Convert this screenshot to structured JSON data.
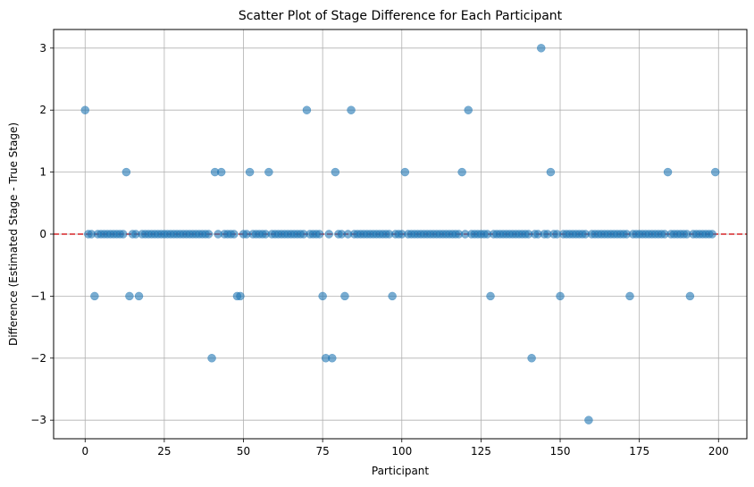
{
  "chart_data": {
    "type": "scatter",
    "title": "Scatter Plot of Stage Difference for Each Participant",
    "xlabel": "Participant",
    "ylabel": "Difference (Estimated Stage - True Stage)",
    "xlim": [
      -9.95,
      208.95
    ],
    "ylim": [
      -3.3,
      3.3
    ],
    "xticks": [
      0,
      25,
      50,
      75,
      100,
      125,
      150,
      175,
      200
    ],
    "yticks": [
      -3,
      -2,
      -1,
      0,
      1,
      2,
      3
    ],
    "grid": true,
    "reference_line": {
      "y": 0,
      "color": "#d62728",
      "style": "dashed"
    },
    "marker_color": "#1f77b4",
    "marker_alpha": 0.6,
    "points": [
      {
        "x": 0,
        "y": 2
      },
      {
        "x": 1,
        "y": 0
      },
      {
        "x": 2,
        "y": 0
      },
      {
        "x": 3,
        "y": -1
      },
      {
        "x": 4,
        "y": 0
      },
      {
        "x": 5,
        "y": 0
      },
      {
        "x": 6,
        "y": 0
      },
      {
        "x": 7,
        "y": 0
      },
      {
        "x": 8,
        "y": 0
      },
      {
        "x": 9,
        "y": 0
      },
      {
        "x": 10,
        "y": 0
      },
      {
        "x": 11,
        "y": 0
      },
      {
        "x": 12,
        "y": 0
      },
      {
        "x": 13,
        "y": 1
      },
      {
        "x": 14,
        "y": -1
      },
      {
        "x": 15,
        "y": 0
      },
      {
        "x": 16,
        "y": 0
      },
      {
        "x": 17,
        "y": -1
      },
      {
        "x": 18,
        "y": 0
      },
      {
        "x": 19,
        "y": 0
      },
      {
        "x": 20,
        "y": 0
      },
      {
        "x": 21,
        "y": 0
      },
      {
        "x": 22,
        "y": 0
      },
      {
        "x": 23,
        "y": 0
      },
      {
        "x": 24,
        "y": 0
      },
      {
        "x": 25,
        "y": 0
      },
      {
        "x": 26,
        "y": 0
      },
      {
        "x": 27,
        "y": 0
      },
      {
        "x": 28,
        "y": 0
      },
      {
        "x": 29,
        "y": 0
      },
      {
        "x": 30,
        "y": 0
      },
      {
        "x": 31,
        "y": 0
      },
      {
        "x": 32,
        "y": 0
      },
      {
        "x": 33,
        "y": 0
      },
      {
        "x": 34,
        "y": 0
      },
      {
        "x": 35,
        "y": 0
      },
      {
        "x": 36,
        "y": 0
      },
      {
        "x": 37,
        "y": 0
      },
      {
        "x": 38,
        "y": 0
      },
      {
        "x": 39,
        "y": 0
      },
      {
        "x": 40,
        "y": -2
      },
      {
        "x": 41,
        "y": 1
      },
      {
        "x": 42,
        "y": 0
      },
      {
        "x": 43,
        "y": 1
      },
      {
        "x": 44,
        "y": 0
      },
      {
        "x": 45,
        "y": 0
      },
      {
        "x": 46,
        "y": 0
      },
      {
        "x": 47,
        "y": 0
      },
      {
        "x": 48,
        "y": -1
      },
      {
        "x": 49,
        "y": -1
      },
      {
        "x": 50,
        "y": 0
      },
      {
        "x": 51,
        "y": 0
      },
      {
        "x": 52,
        "y": 1
      },
      {
        "x": 53,
        "y": 0
      },
      {
        "x": 54,
        "y": 0
      },
      {
        "x": 55,
        "y": 0
      },
      {
        "x": 56,
        "y": 0
      },
      {
        "x": 57,
        "y": 0
      },
      {
        "x": 58,
        "y": 1
      },
      {
        "x": 59,
        "y": 0
      },
      {
        "x": 60,
        "y": 0
      },
      {
        "x": 61,
        "y": 0
      },
      {
        "x": 62,
        "y": 0
      },
      {
        "x": 63,
        "y": 0
      },
      {
        "x": 64,
        "y": 0
      },
      {
        "x": 65,
        "y": 0
      },
      {
        "x": 66,
        "y": 0
      },
      {
        "x": 67,
        "y": 0
      },
      {
        "x": 68,
        "y": 0
      },
      {
        "x": 69,
        "y": 0
      },
      {
        "x": 70,
        "y": 2
      },
      {
        "x": 71,
        "y": 0
      },
      {
        "x": 72,
        "y": 0
      },
      {
        "x": 73,
        "y": 0
      },
      {
        "x": 74,
        "y": 0
      },
      {
        "x": 75,
        "y": -1
      },
      {
        "x": 76,
        "y": -2
      },
      {
        "x": 77,
        "y": 0
      },
      {
        "x": 78,
        "y": -2
      },
      {
        "x": 79,
        "y": 1
      },
      {
        "x": 80,
        "y": 0
      },
      {
        "x": 81,
        "y": 0
      },
      {
        "x": 82,
        "y": -1
      },
      {
        "x": 83,
        "y": 0
      },
      {
        "x": 84,
        "y": 2
      },
      {
        "x": 85,
        "y": 0
      },
      {
        "x": 86,
        "y": 0
      },
      {
        "x": 87,
        "y": 0
      },
      {
        "x": 88,
        "y": 0
      },
      {
        "x": 89,
        "y": 0
      },
      {
        "x": 90,
        "y": 0
      },
      {
        "x": 91,
        "y": 0
      },
      {
        "x": 92,
        "y": 0
      },
      {
        "x": 93,
        "y": 0
      },
      {
        "x": 94,
        "y": 0
      },
      {
        "x": 95,
        "y": 0
      },
      {
        "x": 96,
        "y": 0
      },
      {
        "x": 97,
        "y": -1
      },
      {
        "x": 98,
        "y": 0
      },
      {
        "x": 99,
        "y": 0
      },
      {
        "x": 100,
        "y": 0
      },
      {
        "x": 101,
        "y": 1
      },
      {
        "x": 102,
        "y": 0
      },
      {
        "x": 103,
        "y": 0
      },
      {
        "x": 104,
        "y": 0
      },
      {
        "x": 105,
        "y": 0
      },
      {
        "x": 106,
        "y": 0
      },
      {
        "x": 107,
        "y": 0
      },
      {
        "x": 108,
        "y": 0
      },
      {
        "x": 109,
        "y": 0
      },
      {
        "x": 110,
        "y": 0
      },
      {
        "x": 111,
        "y": 0
      },
      {
        "x": 112,
        "y": 0
      },
      {
        "x": 113,
        "y": 0
      },
      {
        "x": 114,
        "y": 0
      },
      {
        "x": 115,
        "y": 0
      },
      {
        "x": 116,
        "y": 0
      },
      {
        "x": 117,
        "y": 0
      },
      {
        "x": 118,
        "y": 0
      },
      {
        "x": 119,
        "y": 1
      },
      {
        "x": 120,
        "y": 0
      },
      {
        "x": 121,
        "y": 2
      },
      {
        "x": 122,
        "y": 0
      },
      {
        "x": 123,
        "y": 0
      },
      {
        "x": 124,
        "y": 0
      },
      {
        "x": 125,
        "y": 0
      },
      {
        "x": 126,
        "y": 0
      },
      {
        "x": 127,
        "y": 0
      },
      {
        "x": 128,
        "y": -1
      },
      {
        "x": 129,
        "y": 0
      },
      {
        "x": 130,
        "y": 0
      },
      {
        "x": 131,
        "y": 0
      },
      {
        "x": 132,
        "y": 0
      },
      {
        "x": 133,
        "y": 0
      },
      {
        "x": 134,
        "y": 0
      },
      {
        "x": 135,
        "y": 0
      },
      {
        "x": 136,
        "y": 0
      },
      {
        "x": 137,
        "y": 0
      },
      {
        "x": 138,
        "y": 0
      },
      {
        "x": 139,
        "y": 0
      },
      {
        "x": 140,
        "y": 0
      },
      {
        "x": 141,
        "y": -2
      },
      {
        "x": 142,
        "y": 0
      },
      {
        "x": 143,
        "y": 0
      },
      {
        "x": 144,
        "y": 3
      },
      {
        "x": 145,
        "y": 0
      },
      {
        "x": 146,
        "y": 0
      },
      {
        "x": 147,
        "y": 1
      },
      {
        "x": 148,
        "y": 0
      },
      {
        "x": 149,
        "y": 0
      },
      {
        "x": 150,
        "y": -1
      },
      {
        "x": 151,
        "y": 0
      },
      {
        "x": 152,
        "y": 0
      },
      {
        "x": 153,
        "y": 0
      },
      {
        "x": 154,
        "y": 0
      },
      {
        "x": 155,
        "y": 0
      },
      {
        "x": 156,
        "y": 0
      },
      {
        "x": 157,
        "y": 0
      },
      {
        "x": 158,
        "y": 0
      },
      {
        "x": 159,
        "y": -3
      },
      {
        "x": 160,
        "y": 0
      },
      {
        "x": 161,
        "y": 0
      },
      {
        "x": 162,
        "y": 0
      },
      {
        "x": 163,
        "y": 0
      },
      {
        "x": 164,
        "y": 0
      },
      {
        "x": 165,
        "y": 0
      },
      {
        "x": 166,
        "y": 0
      },
      {
        "x": 167,
        "y": 0
      },
      {
        "x": 168,
        "y": 0
      },
      {
        "x": 169,
        "y": 0
      },
      {
        "x": 170,
        "y": 0
      },
      {
        "x": 171,
        "y": 0
      },
      {
        "x": 172,
        "y": -1
      },
      {
        "x": 173,
        "y": 0
      },
      {
        "x": 174,
        "y": 0
      },
      {
        "x": 175,
        "y": 0
      },
      {
        "x": 176,
        "y": 0
      },
      {
        "x": 177,
        "y": 0
      },
      {
        "x": 178,
        "y": 0
      },
      {
        "x": 179,
        "y": 0
      },
      {
        "x": 180,
        "y": 0
      },
      {
        "x": 181,
        "y": 0
      },
      {
        "x": 182,
        "y": 0
      },
      {
        "x": 183,
        "y": 0
      },
      {
        "x": 184,
        "y": 1
      },
      {
        "x": 185,
        "y": 0
      },
      {
        "x": 186,
        "y": 0
      },
      {
        "x": 187,
        "y": 0
      },
      {
        "x": 188,
        "y": 0
      },
      {
        "x": 189,
        "y": 0
      },
      {
        "x": 190,
        "y": 0
      },
      {
        "x": 191,
        "y": -1
      },
      {
        "x": 192,
        "y": 0
      },
      {
        "x": 193,
        "y": 0
      },
      {
        "x": 194,
        "y": 0
      },
      {
        "x": 195,
        "y": 0
      },
      {
        "x": 196,
        "y": 0
      },
      {
        "x": 197,
        "y": 0
      },
      {
        "x": 198,
        "y": 0
      },
      {
        "x": 199,
        "y": 1
      }
    ]
  }
}
